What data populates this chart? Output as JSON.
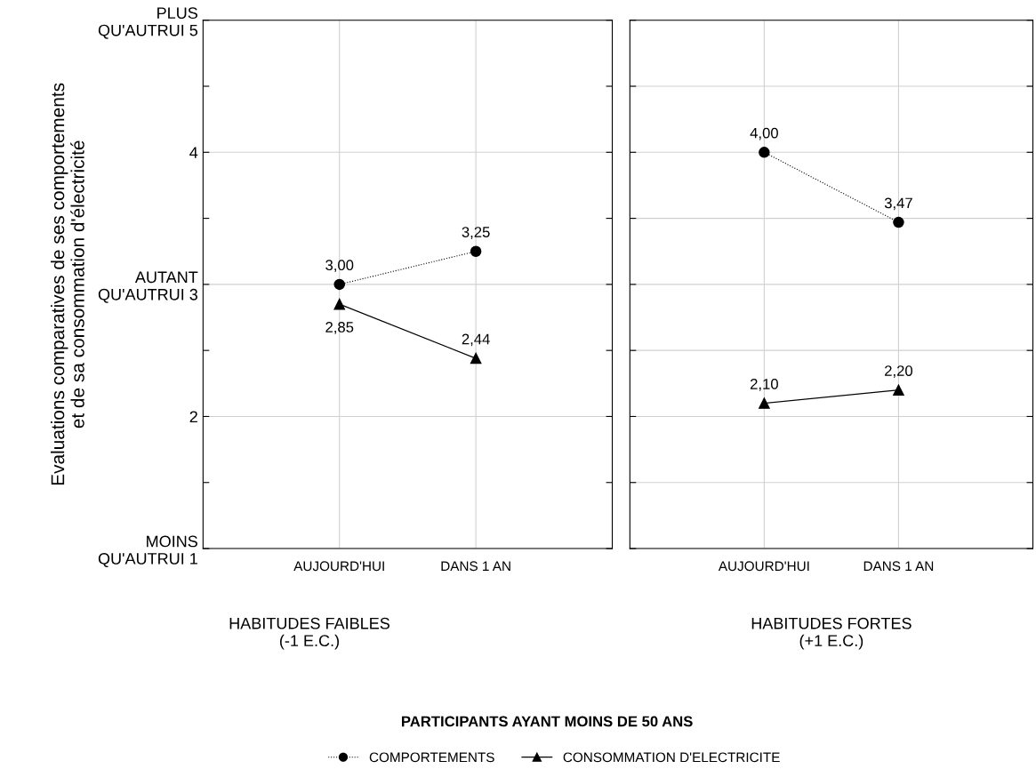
{
  "chart_data": [
    {
      "type": "line",
      "categories": [
        "AUJOURD'HUI",
        "DANS 1 AN"
      ],
      "xlabel": "HABITUDES FAIBLES\n(-1 E.C.)",
      "ylabel": "Evaluations comparatives de ses comportements\net de sa consommation d'électricité",
      "ylim": [
        1,
        5
      ],
      "yticks": [
        {
          "value": 1,
          "label": "MOINS\nQU'AUTRUI 1"
        },
        {
          "value": 1.5,
          "label": null
        },
        {
          "value": 2,
          "label": "2"
        },
        {
          "value": 2.5,
          "label": null
        },
        {
          "value": 3,
          "label": "AUTANT\nQU'AUTRUI 3"
        },
        {
          "value": 3.5,
          "label": null
        },
        {
          "value": 4,
          "label": "4"
        },
        {
          "value": 4.5,
          "label": null
        },
        {
          "value": 5,
          "label": "PLUS\nQU'AUTRUI 5"
        }
      ],
      "grid": true,
      "legend": "bottom",
      "annotations": [
        "PARTICIPANTS AYANT MOINS DE 50 ANS"
      ],
      "series": [
        {
          "name": "COMPORTEMENTS",
          "color": "#000000",
          "marker": "circle",
          "line_style": "dotted",
          "values": [
            3.0,
            3.25
          ],
          "value_labels": [
            "3,00",
            "3,25"
          ]
        },
        {
          "name": "CONSOMMATION D'ELECTRICITE",
          "color": "#000000",
          "marker": "triangle",
          "line_style": "solid",
          "values": [
            2.85,
            2.44
          ],
          "value_labels": [
            "2,85",
            "2,44"
          ]
        }
      ]
    },
    {
      "type": "line",
      "categories": [
        "AUJOURD'HUI",
        "DANS 1 AN"
      ],
      "xlabel": "HABITUDES FORTES\n(+1 E.C.)",
      "ylim": [
        1,
        5
      ],
      "yticks": [
        1,
        1.5,
        2,
        2.5,
        3,
        3.5,
        4,
        4.5,
        5
      ],
      "tick_labels": "x",
      "grid": true,
      "series": [
        {
          "color": "#000000",
          "marker": "circle",
          "line_style": "dotted",
          "values": [
            4.0,
            3.47
          ],
          "value_labels": [
            "4,00",
            "3,47"
          ]
        },
        {
          "color": "#000000",
          "marker": "triangle",
          "line_style": "solid",
          "values": [
            2.1,
            2.2
          ],
          "value_labels": [
            "2,10",
            "2,20"
          ]
        }
      ]
    }
  ]
}
